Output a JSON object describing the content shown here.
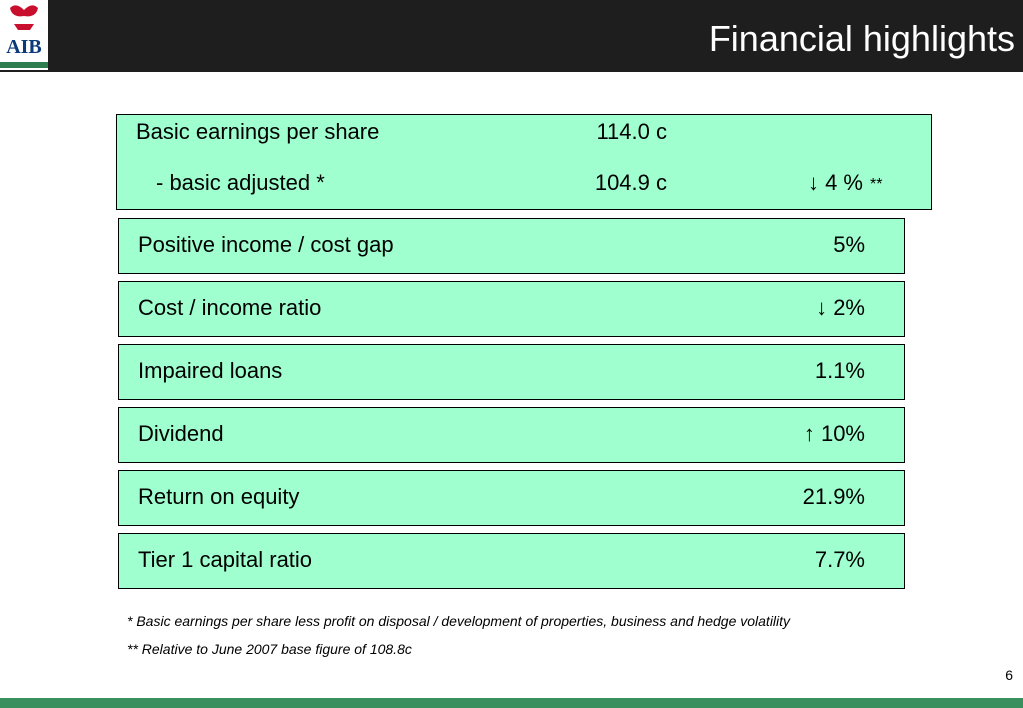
{
  "header": {
    "logo_text": "AIB",
    "title": "Financial highlights"
  },
  "boxes": [
    {
      "rows": [
        {
          "label": "Basic earnings per share",
          "value": "114.0 c"
        },
        {
          "label": "- basic adjusted *",
          "value": "104.9 c",
          "change": "↓ 4 %",
          "change_note": "**"
        }
      ]
    },
    {
      "rows": [
        {
          "label": "Positive income / cost gap",
          "value": "5%"
        }
      ]
    },
    {
      "rows": [
        {
          "label": "Cost / income ratio",
          "value": "↓ 2%"
        }
      ]
    },
    {
      "rows": [
        {
          "label": "Impaired loans",
          "value": "1.1%"
        }
      ]
    },
    {
      "rows": [
        {
          "label": "Dividend",
          "value": "↑ 10%"
        }
      ]
    },
    {
      "rows": [
        {
          "label": "Return on equity",
          "value": "21.9%"
        }
      ]
    },
    {
      "rows": [
        {
          "label": "Tier 1 capital ratio",
          "value": "7.7%"
        }
      ]
    }
  ],
  "footnotes": [
    "* Basic earnings per share less profit on disposal / development of properties, business and hedge volatility",
    "** Relative to June 2007 base figure of 108.8c"
  ],
  "page_number": "6"
}
